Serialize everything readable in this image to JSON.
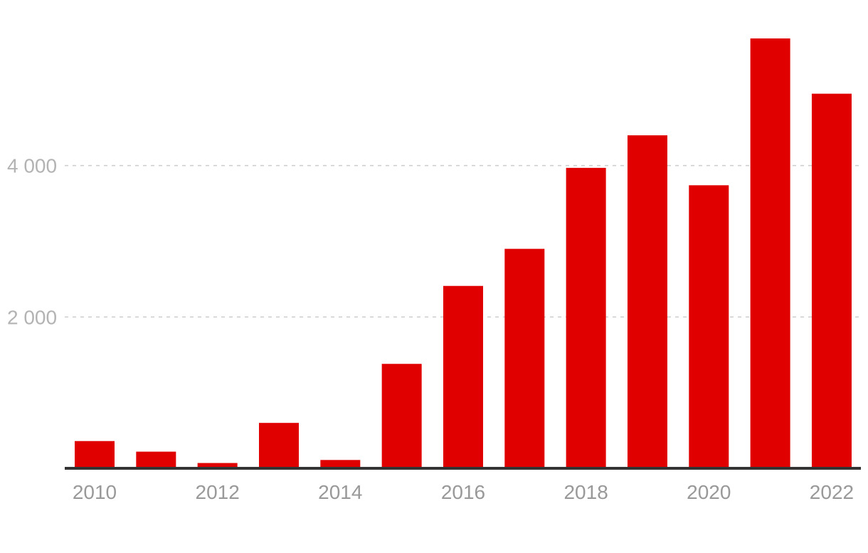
{
  "chart_data": {
    "type": "bar",
    "title": "",
    "xlabel": "",
    "ylabel": "",
    "categories": [
      "2010",
      "2011",
      "2012",
      "2013",
      "2014",
      "2015",
      "2016",
      "2017",
      "2018",
      "2019",
      "2020",
      "2021",
      "2022"
    ],
    "values": [
      360,
      220,
      70,
      600,
      110,
      1380,
      2410,
      2900,
      3970,
      4400,
      3740,
      5680,
      4950
    ],
    "ylim": [
      0,
      6000
    ],
    "yticks": [
      {
        "value": 2000,
        "label": "2 000"
      },
      {
        "value": 4000,
        "label": "4 000"
      }
    ],
    "xtick_labels": [
      "2010",
      "2012",
      "2014",
      "2016",
      "2018",
      "2020",
      "2022"
    ],
    "grid": true,
    "legend": "none",
    "colors": {
      "bar": "#e00000",
      "grid": "#cccccc",
      "baseline": "#333333",
      "ytick": "#b3b3b3",
      "xtick": "#999999"
    }
  }
}
